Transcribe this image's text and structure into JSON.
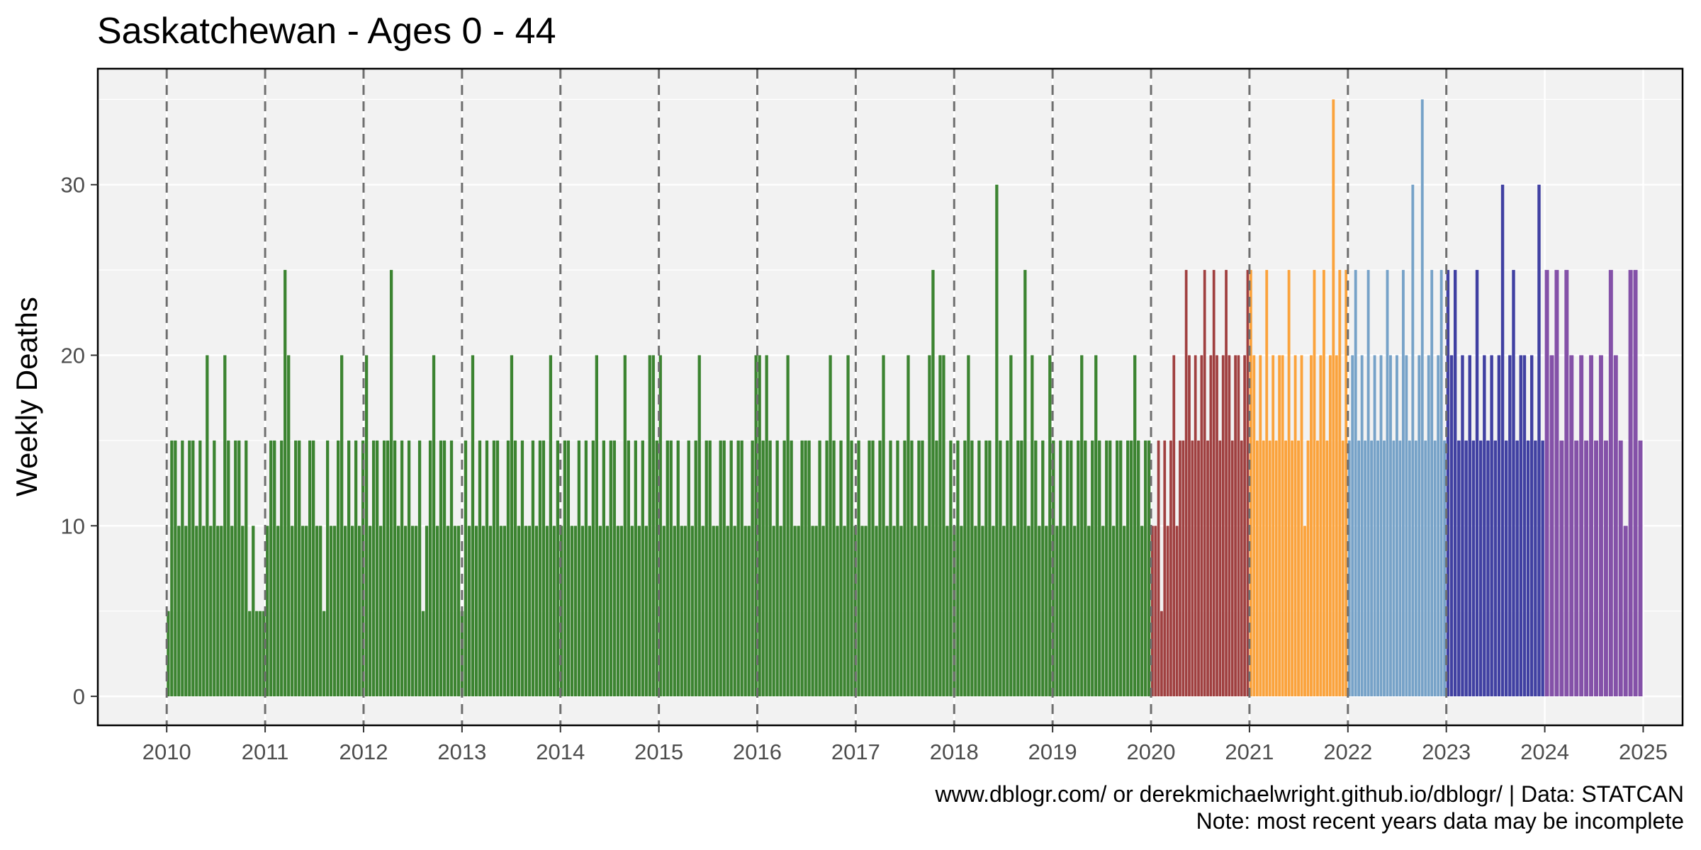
{
  "chart_data": {
    "type": "bar",
    "title": "Saskatchewan - Ages 0 - 44",
    "xlabel": "",
    "ylabel": "Weekly Deaths",
    "x_ticks": [
      "2010",
      "2011",
      "2012",
      "2013",
      "2014",
      "2015",
      "2016",
      "2017",
      "2018",
      "2019",
      "2020",
      "2021",
      "2022",
      "2023",
      "2024",
      "2025"
    ],
    "y_ticks": [
      0,
      10,
      20,
      30
    ],
    "xlim": [
      2009.3,
      2025.4
    ],
    "ylim": [
      -1.7,
      36.8
    ],
    "grid": true,
    "year_separators": [
      "2010",
      "2011",
      "2012",
      "2013",
      "2014",
      "2015",
      "2016",
      "2017",
      "2018",
      "2019",
      "2020",
      "2021",
      "2022",
      "2023"
    ],
    "caption_lines": [
      "www.dblogr.com/ or derekmichaelwright.github.io/dblogr/ | Data: STATCAN",
      "Note: most recent years data may be incomplete"
    ],
    "series": [
      {
        "years": "2010-2019",
        "color": "#3c8431",
        "values": [
          5,
          15,
          15,
          10,
          15,
          10,
          15,
          15,
          10,
          15,
          10,
          20,
          10,
          15,
          10,
          10,
          20,
          15,
          10,
          15,
          15,
          10,
          15,
          5,
          10,
          5,
          5,
          5,
          10,
          15,
          15,
          10,
          15,
          25,
          20,
          10,
          15,
          15,
          10,
          10,
          15,
          15,
          10,
          10,
          5,
          15,
          10,
          10,
          15,
          20,
          10,
          15,
          10,
          15,
          10,
          15,
          20,
          10,
          15,
          15,
          10,
          15,
          15,
          25,
          15,
          10,
          15,
          10,
          15,
          10,
          10,
          15,
          5,
          10,
          15,
          20,
          10,
          15,
          15,
          10,
          15,
          10,
          10,
          5,
          15,
          10,
          20,
          10,
          15,
          10,
          15,
          10,
          15,
          15,
          10,
          10,
          15,
          20,
          15,
          10,
          15,
          10,
          10,
          15,
          10,
          15,
          15,
          10,
          20,
          10,
          15,
          10,
          15,
          15,
          10,
          10,
          15,
          10,
          15,
          10,
          15,
          20,
          10,
          15,
          10,
          15,
          15,
          10,
          10,
          20,
          15,
          10,
          15,
          10,
          15,
          10,
          20,
          20,
          15,
          20,
          10,
          15,
          15,
          10,
          15,
          10,
          10,
          15,
          10,
          15,
          20,
          10,
          15,
          15,
          10,
          10,
          15,
          15,
          10,
          15,
          10,
          15,
          15,
          10,
          10,
          15,
          20,
          20,
          15,
          20,
          15,
          10,
          15,
          10,
          15,
          20,
          15,
          10,
          10,
          15,
          15,
          15,
          10,
          10,
          15,
          10,
          15,
          20,
          15,
          10,
          15,
          10,
          20,
          15,
          10,
          15,
          10,
          10,
          15,
          15,
          10,
          15,
          20,
          10,
          15,
          10,
          15,
          10,
          15,
          20,
          15,
          10,
          15,
          15,
          10,
          20,
          25,
          15,
          20,
          20,
          10,
          15,
          10,
          15,
          10,
          15,
          20,
          15,
          10,
          15,
          10,
          15,
          15,
          10,
          30,
          15,
          10,
          15,
          20,
          10,
          15,
          15,
          25,
          10,
          20,
          15,
          10,
          15,
          10,
          20,
          15,
          10,
          15,
          10,
          15,
          15,
          10,
          15,
          20,
          15,
          10,
          15,
          20,
          15,
          10,
          15,
          15,
          10,
          15,
          15,
          10,
          15,
          15,
          20,
          15,
          10,
          15,
          15
        ]
      },
      {
        "years": "2020",
        "color": "#a04040",
        "values": [
          10,
          10,
          15,
          5,
          15,
          10,
          15,
          20,
          10,
          15,
          15,
          25,
          20,
          15,
          20,
          15,
          20,
          25,
          15,
          20,
          25,
          20,
          15,
          20,
          25,
          20,
          15,
          20,
          20,
          15,
          20,
          25
        ]
      },
      {
        "years": "2021",
        "color": "#fba33c",
        "values": [
          25,
          20,
          15,
          20,
          15,
          25,
          15,
          20,
          15,
          20,
          20,
          15,
          25,
          15,
          20,
          15,
          20,
          10,
          15,
          20,
          25,
          15,
          20,
          25,
          15,
          20,
          35,
          20,
          25,
          15,
          25
        ]
      },
      {
        "years": "2022",
        "color": "#76a2c8",
        "values": [
          15,
          20,
          25,
          15,
          20,
          15,
          25,
          15,
          20,
          15,
          20,
          15,
          25,
          20,
          15,
          20,
          15,
          25,
          20,
          15,
          30,
          15,
          20,
          35,
          15,
          20,
          25,
          15,
          20,
          25,
          15
        ]
      },
      {
        "years": "2023",
        "color": "#4040a2",
        "values": [
          25,
          20,
          25,
          15,
          20,
          15,
          20,
          15,
          25,
          15,
          20,
          15,
          20,
          15,
          20,
          30,
          15,
          20,
          25,
          15,
          20,
          20,
          15,
          20,
          15,
          30,
          15
        ]
      },
      {
        "years": "2024",
        "color": "#8451a8",
        "values": [
          25,
          20,
          25,
          15,
          25,
          20,
          15,
          20,
          15,
          20,
          15,
          20,
          15,
          25,
          20,
          15,
          10,
          25,
          25,
          15
        ]
      }
    ]
  }
}
